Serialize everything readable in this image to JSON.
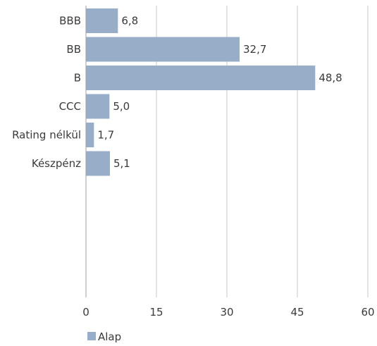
{
  "chart_data": {
    "type": "bar",
    "orientation": "horizontal",
    "categories": [
      "BBB",
      "BB",
      "B",
      "CCC",
      "Rating nélkül",
      "Készpénz"
    ],
    "series": [
      {
        "name": "Alap",
        "values": [
          6.8,
          32.7,
          48.8,
          5.0,
          1.7,
          5.1
        ]
      }
    ],
    "value_labels": [
      "6,8",
      "32,7",
      "48,8",
      "5,0",
      "1,7",
      "5,1"
    ],
    "xlim": [
      0,
      60
    ],
    "xticks": [
      0,
      15,
      30,
      45,
      60
    ],
    "xtick_labels": [
      "0",
      "15",
      "30",
      "45",
      "60"
    ],
    "grid": "vertical",
    "legend_position": "bottom-left",
    "title": "",
    "xlabel": "",
    "ylabel": "",
    "colors": {
      "bar": "#98aec8",
      "grid": "#c8c8c8",
      "axis": "#a0a0a0",
      "text": "#3a3a3a"
    }
  }
}
